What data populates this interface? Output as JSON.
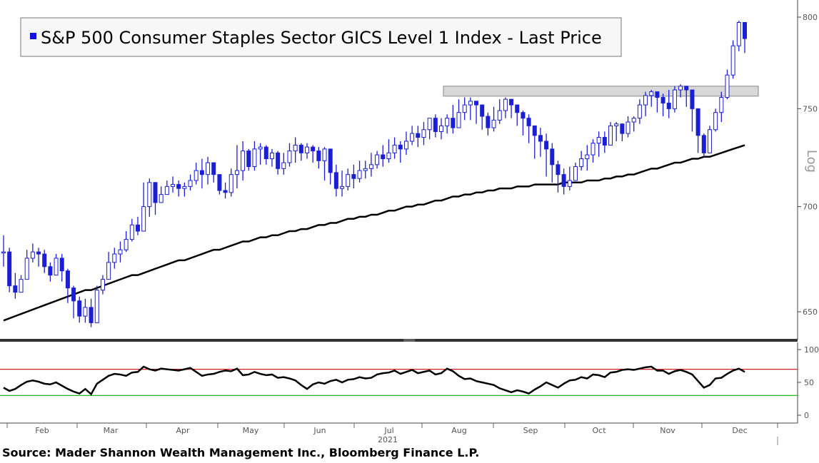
{
  "chart_data": {
    "type": "candlestick",
    "title": "S&P 500 Consumer Staples Sector GICS Level 1 Index - Last Price",
    "y_scale": "log",
    "y_scale_label": "Log",
    "ylim": [
      640,
      805
    ],
    "y_ticks": [
      650,
      700,
      750,
      800
    ],
    "x_ticks": [
      "Feb",
      "Mar",
      "Apr",
      "May",
      "Jun",
      "Jul",
      "Aug",
      "Sep",
      "Oct",
      "Nov",
      "Dec"
    ],
    "x_year_label": "2021",
    "price_close": [
      678,
      662,
      659,
      665,
      675,
      678,
      677,
      671,
      667,
      675,
      669,
      661,
      655,
      648,
      652,
      645,
      660,
      665,
      673,
      677,
      679,
      684,
      691,
      688,
      700,
      712,
      702,
      706,
      710,
      711,
      709,
      710,
      713,
      718,
      716,
      722,
      716,
      708,
      707,
      716,
      718,
      728,
      720,
      729,
      730,
      724,
      727,
      719,
      722,
      728,
      731,
      727,
      730,
      728,
      723,
      729,
      717,
      709,
      710,
      716,
      714,
      718,
      719,
      721,
      726,
      724,
      727,
      731,
      729,
      733,
      737,
      735,
      739,
      745,
      738,
      741,
      745,
      740,
      748,
      752,
      754,
      752,
      746,
      740,
      744,
      749,
      755,
      752,
      748,
      745,
      741,
      736,
      733,
      729,
      721,
      716,
      710,
      713,
      720,
      724,
      726,
      732,
      735,
      731,
      741,
      742,
      737,
      743,
      745,
      752,
      757,
      759,
      756,
      753,
      750,
      760,
      762,
      760,
      750,
      736,
      727,
      739,
      748,
      756,
      768,
      784,
      797,
      788
    ],
    "price_high": [
      686,
      680,
      668,
      667,
      679,
      682,
      680,
      679,
      673,
      677,
      677,
      670,
      662,
      657,
      656,
      656,
      662,
      667,
      678,
      680,
      683,
      688,
      694,
      695,
      712,
      714,
      710,
      710,
      713,
      715,
      713,
      712,
      716,
      722,
      724,
      725,
      719,
      713,
      712,
      719,
      731,
      733,
      729,
      733,
      732,
      731,
      729,
      728,
      727,
      732,
      735,
      732,
      732,
      731,
      730,
      730,
      728,
      721,
      718,
      719,
      721,
      723,
      723,
      727,
      728,
      731,
      734,
      735,
      733,
      738,
      741,
      741,
      743,
      745,
      747,
      745,
      747,
      752,
      755,
      756,
      756,
      754,
      751,
      748,
      751,
      755,
      756,
      755,
      752,
      749,
      747,
      741,
      740,
      737,
      732,
      723,
      719,
      720,
      722,
      728,
      731,
      734,
      738,
      738,
      743,
      743,
      742,
      746,
      746,
      755,
      759,
      760,
      759,
      758,
      760,
      762,
      763,
      762,
      760,
      747,
      737,
      741,
      750,
      759,
      771,
      787,
      798,
      797
    ],
    "price_low": [
      671,
      659,
      656,
      661,
      668,
      673,
      671,
      668,
      664,
      667,
      664,
      654,
      647,
      645,
      645,
      643,
      648,
      658,
      665,
      670,
      673,
      678,
      683,
      686,
      691,
      695,
      696,
      703,
      706,
      707,
      705,
      705,
      708,
      711,
      709,
      711,
      712,
      706,
      704,
      705,
      709,
      713,
      718,
      718,
      721,
      721,
      720,
      716,
      716,
      720,
      722,
      723,
      724,
      722,
      719,
      713,
      711,
      705,
      705,
      708,
      709,
      712,
      714,
      715,
      719,
      720,
      722,
      724,
      722,
      726,
      731,
      730,
      731,
      734,
      735,
      734,
      737,
      737,
      741,
      744,
      744,
      742,
      739,
      736,
      738,
      742,
      745,
      745,
      741,
      736,
      732,
      724,
      725,
      715,
      712,
      707,
      706,
      708,
      713,
      718,
      718,
      722,
      725,
      727,
      731,
      733,
      733,
      735,
      738,
      742,
      746,
      751,
      748,
      746,
      745,
      748,
      756,
      751,
      738,
      727,
      725,
      727,
      738,
      743,
      755,
      766,
      781,
      780
    ],
    "moving_average": [
      646,
      647,
      648,
      649,
      650,
      651,
      652,
      653,
      654,
      655,
      656,
      657,
      658,
      659,
      660,
      660,
      661,
      662,
      663,
      664,
      665,
      666,
      667,
      667,
      668,
      669,
      670,
      671,
      672,
      673,
      674,
      674,
      675,
      676,
      677,
      678,
      679,
      679,
      680,
      681,
      682,
      683,
      683,
      684,
      685,
      685,
      686,
      686,
      687,
      688,
      688,
      689,
      689,
      690,
      691,
      691,
      692,
      692,
      693,
      694,
      694,
      695,
      695,
      696,
      696,
      697,
      698,
      698,
      699,
      700,
      700,
      701,
      701,
      702,
      703,
      703,
      704,
      705,
      705,
      706,
      706,
      707,
      707,
      708,
      708,
      709,
      709,
      709,
      710,
      710,
      710,
      711,
      711,
      711,
      711,
      711,
      712,
      712,
      712,
      712,
      713,
      713,
      713,
      714,
      714,
      715,
      715,
      716,
      716,
      717,
      718,
      719,
      719,
      720,
      721,
      722,
      722,
      723,
      724,
      724,
      725,
      725,
      726,
      727,
      728,
      729,
      730,
      731
    ],
    "rsi": {
      "ylim": [
        -5,
        105
      ],
      "y_ticks": [
        0,
        50,
        100
      ],
      "overbought": 70,
      "oversold": 30,
      "values": [
        42,
        37,
        40,
        46,
        51,
        53,
        51,
        48,
        47,
        50,
        45,
        40,
        36,
        33,
        40,
        32,
        48,
        54,
        60,
        63,
        62,
        60,
        65,
        66,
        74,
        70,
        68,
        71,
        70,
        69,
        68,
        70,
        72,
        66,
        60,
        62,
        63,
        66,
        68,
        67,
        71,
        61,
        62,
        66,
        63,
        61,
        62,
        57,
        58,
        56,
        53,
        46,
        40,
        47,
        50,
        48,
        52,
        54,
        50,
        54,
        55,
        58,
        56,
        57,
        62,
        64,
        65,
        68,
        63,
        66,
        69,
        64,
        66,
        68,
        62,
        64,
        71,
        67,
        60,
        55,
        56,
        52,
        50,
        48,
        46,
        41,
        38,
        35,
        38,
        36,
        33,
        39,
        44,
        50,
        46,
        42,
        48,
        53,
        54,
        58,
        56,
        62,
        61,
        58,
        65,
        66,
        69,
        70,
        69,
        71,
        73,
        74,
        68,
        68,
        63,
        67,
        69,
        66,
        62,
        52,
        42,
        46,
        56,
        57,
        63,
        68,
        71,
        66
      ]
    }
  },
  "source_text": "Source: Mader Shannon Wealth Management Inc., Bloomberg Finance L.P.",
  "colors": {
    "candle": "#1a1fd6",
    "moving_average": "#000000",
    "rsi_line": "#000000",
    "overbought_line": "#d62020",
    "oversold_line": "#28b428",
    "resistance_band": "#d8d8d8",
    "title_marker": "#1010e0",
    "axis_text": "#555555"
  }
}
